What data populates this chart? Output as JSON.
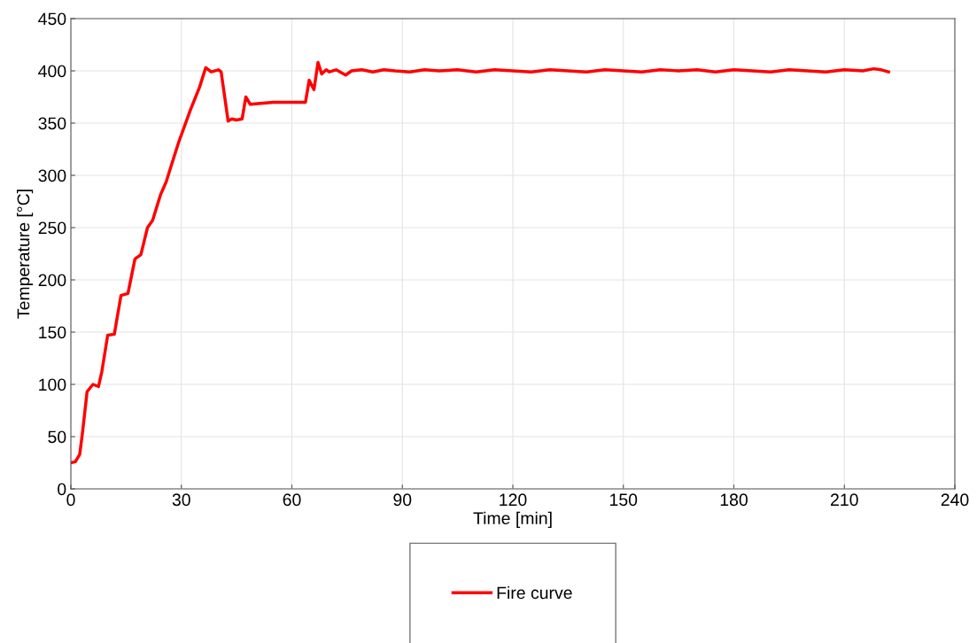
{
  "chart_data": {
    "type": "line",
    "xlabel": "Time [min]",
    "ylabel": "Temperature [°C]",
    "xlim": [
      0,
      240
    ],
    "xticks": [
      0,
      30,
      60,
      90,
      120,
      150,
      180,
      210,
      240
    ],
    "ylim": [
      0,
      450
    ],
    "yticks": [
      0,
      50,
      100,
      150,
      200,
      250,
      300,
      350,
      400,
      450
    ],
    "grid": true,
    "legend": "bottom",
    "marker": "none",
    "line_style": "solid",
    "series": [
      {
        "name": "Fire curve",
        "color": "#ff0000",
        "x": [
          0,
          1.2,
          2.4,
          3.2,
          4.4,
          6,
          7.5,
          8.4,
          10,
          11.8,
          13.6,
          15.5,
          17.4,
          19,
          20.8,
          22.2,
          24.3,
          25.9,
          27.5,
          29.3,
          32.5,
          34.9,
          36.6,
          38.1,
          40.1,
          40.8,
          42.7,
          43.7,
          44.9,
          46.5,
          47.5,
          48.7,
          54.9,
          59.7,
          63.7,
          64.7,
          66,
          67.1,
          68.1,
          69.3,
          70.2,
          72,
          74.6,
          76.2,
          79,
          82,
          85,
          88,
          92,
          96,
          100,
          105,
          110,
          115,
          120,
          125,
          130,
          135,
          140,
          145,
          150,
          155,
          160,
          165,
          170,
          175,
          180,
          185,
          190,
          195,
          200,
          205,
          210,
          215,
          218,
          220,
          222
        ],
        "values": [
          25,
          26,
          33,
          55,
          93,
          100,
          98,
          112,
          147,
          148,
          185,
          187,
          220,
          224,
          250,
          257,
          281,
          294,
          312,
          332,
          363,
          384,
          403,
          399,
          401,
          399,
          352,
          354,
          353,
          354,
          375,
          368,
          370,
          370,
          370,
          391,
          382,
          408,
          397,
          401,
          399,
          401,
          396,
          400,
          401,
          399,
          401,
          400,
          399,
          401,
          400,
          401,
          399,
          401,
          400,
          399,
          401,
          400,
          399,
          401,
          400,
          399,
          401,
          400,
          401,
          399,
          401,
          400,
          399,
          401,
          400,
          399,
          401,
          400,
          402,
          401,
          399
        ]
      }
    ]
  }
}
